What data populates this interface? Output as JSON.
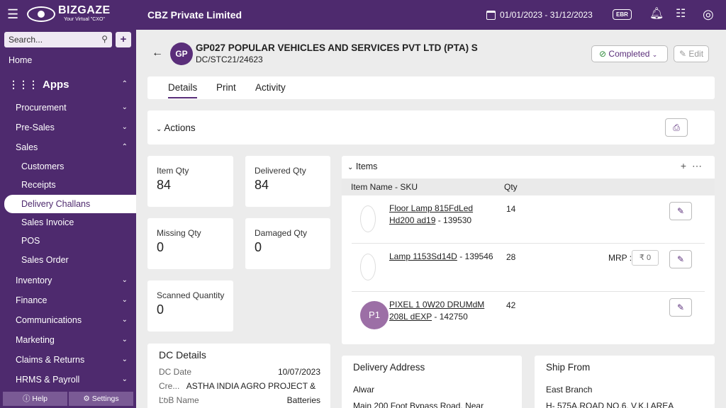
{
  "topbar": {
    "brand": "BIZGAZE",
    "tagline": "Your Virtual \"CXO\"",
    "company": "CBZ Private Limited",
    "date_range": "01/01/2023 - 31/12/2023",
    "ebr_label": "EBR"
  },
  "sidebar": {
    "search_placeholder": "Search...",
    "home": "Home",
    "apps": "Apps",
    "items": [
      {
        "label": "Procurement",
        "chevron": "⌄"
      },
      {
        "label": "Pre-Sales",
        "chevron": "⌄"
      },
      {
        "label": "Sales",
        "chevron": "⌃"
      }
    ],
    "sales_sub": [
      "Customers",
      "Receipts",
      "Delivery Challans",
      "Sales Invoice",
      "POS",
      "Sales Order"
    ],
    "items_after": [
      {
        "label": "Inventory"
      },
      {
        "label": "Finance"
      },
      {
        "label": "Communications"
      },
      {
        "label": "Marketing"
      },
      {
        "label": "Claims & Returns"
      },
      {
        "label": "HRMS & Payroll"
      }
    ],
    "footer": {
      "help": "Help",
      "settings": "Settings"
    }
  },
  "header": {
    "avatar": "GP",
    "title": "GP027 POPULAR VEHICLES AND SERVICES PVT LTD (PTA) S",
    "doc_no": "DC/STC21/24623",
    "status": "Completed",
    "edit": "Edit"
  },
  "tabs": [
    "Details",
    "Print",
    "Activity"
  ],
  "actions_title": "Actions",
  "kpis": [
    {
      "label": "Item Qty",
      "value": "84"
    },
    {
      "label": "Delivered Qty",
      "value": "84"
    },
    {
      "label": "Missing Qty",
      "value": "0"
    },
    {
      "label": "Damaged Qty",
      "value": "0"
    },
    {
      "label": "Scanned Quantity",
      "value": "0"
    }
  ],
  "items_panel": {
    "title": "Items",
    "col_name": "Item Name - SKU",
    "col_qty": "Qty",
    "rows": [
      {
        "name1": "Floor Lamp 815FdLed",
        "name2": "Hd200 ad19",
        "sku": " - 139530",
        "qty": "14"
      },
      {
        "name1": "Lamp 1153Sd14D",
        "name2": "",
        "sku": " - 139546",
        "qty": "28",
        "mrp_label": "MRP :",
        "mrp_value": "₹ 0"
      },
      {
        "name1": "PIXEL 1 0W20 DRUMdM",
        "name2": "208L dEXP",
        "sku": " - 142750",
        "qty": "42",
        "avatar": "P1"
      }
    ]
  },
  "dc_details": {
    "title": "DC Details",
    "rows": [
      {
        "label": "DC Date",
        "value": "10/07/2023"
      },
      {
        "label": "Cre...",
        "value": "ASTHA INDIA AGRO PROJECT & ..."
      },
      {
        "label": "LoB Name",
        "value": "Batteries"
      }
    ]
  },
  "delivery_address": {
    "title": "Delivery Address",
    "line1": "Alwar",
    "line2": "Main 200 Foot Bypass Road, Near"
  },
  "ship_from": {
    "title": "Ship From",
    "line1": "East Branch",
    "line2": "H- 575A,ROAD NO.6, V.K.I AREA"
  }
}
